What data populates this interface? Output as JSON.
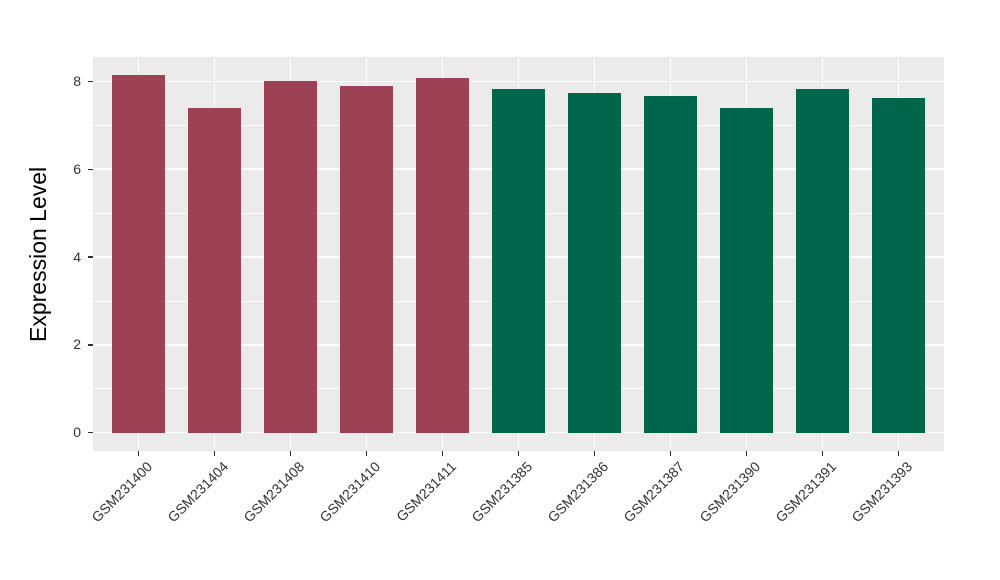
{
  "chart_data": {
    "type": "bar",
    "title": "",
    "xlabel": "",
    "ylabel": "Expression Level",
    "categories": [
      "GSM231400",
      "GSM231404",
      "GSM231408",
      "GSM231410",
      "GSM231411",
      "GSM231385",
      "GSM231386",
      "GSM231387",
      "GSM231390",
      "GSM231391",
      "GSM231393"
    ],
    "values": [
      8.15,
      7.4,
      8.02,
      7.89,
      8.08,
      7.82,
      7.73,
      7.68,
      7.39,
      7.83,
      7.62
    ],
    "bar_colors": [
      "#9C4254",
      "#9C4254",
      "#9C4254",
      "#9C4254",
      "#9C4254",
      "#00664B",
      "#00664B",
      "#00664B",
      "#00664B",
      "#00664B",
      "#00664B"
    ],
    "yticks": [
      0,
      2,
      4,
      6,
      8
    ],
    "yticks_minor": [
      1,
      3,
      5,
      7
    ],
    "ylim": [
      -0.41,
      8.56
    ],
    "bar_width_fraction": 0.7,
    "legend_position": "none",
    "grid": "on"
  },
  "style": {
    "panel_bg": "#EBEBEB",
    "grid_major_color": "#FFFFFF",
    "grid_minor_color": "#FFFFFF",
    "tick_color": "#333333",
    "axis_text_color": "#333333",
    "axis_title_color": "#000000",
    "background": "#FFFFFF"
  }
}
